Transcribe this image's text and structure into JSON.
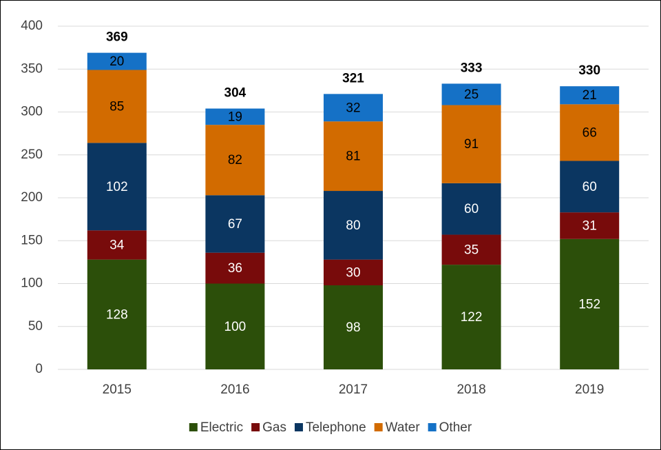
{
  "chart_data": {
    "type": "stacked_bar",
    "categories": [
      "2015",
      "2016",
      "2017",
      "2018",
      "2019"
    ],
    "series": [
      {
        "name": "Electric",
        "color": "#2c4f0a",
        "label_color": "#ffffff",
        "values": [
          128,
          100,
          98,
          122,
          152
        ]
      },
      {
        "name": "Gas",
        "color": "#780b0b",
        "label_color": "#ffffff",
        "values": [
          34,
          36,
          30,
          35,
          31
        ]
      },
      {
        "name": "Telephone",
        "color": "#0b3661",
        "label_color": "#ffffff",
        "values": [
          102,
          67,
          80,
          60,
          60
        ]
      },
      {
        "name": "Water",
        "color": "#d26b00",
        "label_color": "#000000",
        "values": [
          85,
          82,
          81,
          91,
          66
        ]
      },
      {
        "name": "Other",
        "color": "#1571c6",
        "label_color": "#000000",
        "values": [
          20,
          19,
          32,
          25,
          21
        ]
      }
    ],
    "totals": [
      369,
      304,
      321,
      333,
      330
    ],
    "ylim": [
      0,
      400
    ],
    "yticks": [
      0,
      50,
      100,
      150,
      200,
      250,
      300,
      350,
      400
    ],
    "grid": true,
    "legend": "bottom"
  }
}
